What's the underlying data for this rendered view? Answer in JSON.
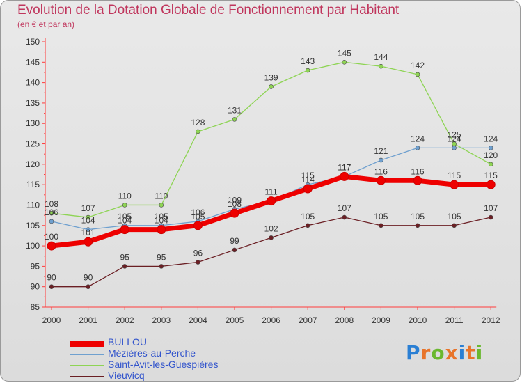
{
  "title": "Evolution de la Dotation Globale de Fonctionnement par Habitant",
  "subtitle": "(en € et par an)",
  "logo": {
    "text": "Proxiti",
    "letter_colors": [
      "#2a7fd4",
      "#e8742a",
      "#6ab82f",
      "#e8742a",
      "#2a7fd4",
      "#e8742a",
      "#6ab82f"
    ]
  },
  "chart_data": {
    "type": "line",
    "title": "Evolution de la Dotation Globale de Fonctionnement par Habitant",
    "subtitle": "(en € et par an)",
    "x": [
      "2000",
      "2001",
      "2002",
      "2003",
      "2004",
      "2005",
      "2006",
      "2007",
      "2008",
      "2009",
      "2010",
      "2011",
      "2012"
    ],
    "ylim": [
      85,
      150
    ],
    "yticks": [
      85,
      90,
      95,
      100,
      105,
      110,
      115,
      120,
      125,
      130,
      135,
      140,
      145,
      150
    ],
    "grid": false,
    "legend_position": "bottom-left",
    "series": [
      {
        "name": "BULLOU",
        "color": "#ee0000",
        "values": [
          100,
          101,
          104,
          104,
          105,
          108,
          111,
          114,
          117,
          116,
          116,
          115,
          115
        ]
      },
      {
        "name": "Mézières-au-Perche",
        "color": "#6fa0cf",
        "values": [
          106,
          104,
          105,
          105,
          106,
          109,
          111,
          115,
          117,
          121,
          124,
          124,
          124
        ]
      },
      {
        "name": "Saint-Avit-les-Guespières",
        "color": "#8ed454",
        "values": [
          108,
          107,
          110,
          110,
          128,
          131,
          139,
          143,
          145,
          144,
          142,
          125,
          120
        ]
      },
      {
        "name": "Vieuvicq",
        "color": "#6b1f24",
        "values": [
          90,
          90,
          95,
          95,
          96,
          99,
          102,
          105,
          107,
          105,
          105,
          105,
          107
        ]
      }
    ]
  }
}
